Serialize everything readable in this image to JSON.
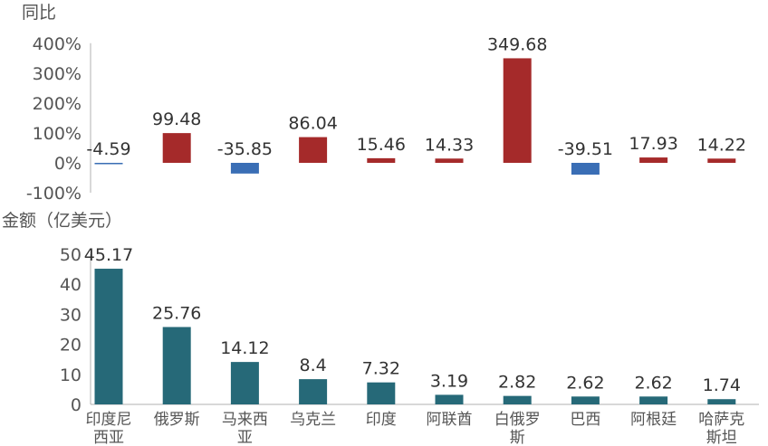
{
  "chart_data": [
    {
      "type": "bar",
      "ylabel": "同比",
      "yticks": [
        "400%",
        "300%",
        "200%",
        "100%",
        "0%",
        "-100%"
      ],
      "ytick_values": [
        400,
        300,
        200,
        100,
        0,
        -100
      ],
      "ylim": [
        -100,
        400
      ],
      "grid": false,
      "categories": [
        "印度尼西亚",
        "俄罗斯",
        "马来西亚",
        "乌克兰",
        "印度",
        "阿联酋",
        "白俄罗斯",
        "巴西",
        "阿根廷",
        "哈萨克斯坦"
      ],
      "values": [
        -4.59,
        99.48,
        -35.85,
        86.04,
        15.46,
        14.33,
        349.68,
        -39.51,
        17.93,
        14.22
      ],
      "value_labels": [
        "-4.59",
        "99.48",
        "-35.85",
        "86.04",
        "15.46",
        "14.33",
        "349.68",
        "-39.51",
        "17.93",
        "14.22"
      ],
      "colors": {
        "positive": "#a52a2a",
        "negative": "#3a6eb5"
      }
    },
    {
      "type": "bar",
      "ylabel": "金额（亿美元）",
      "yticks": [
        "50",
        "40",
        "30",
        "20",
        "10",
        "0"
      ],
      "ytick_values": [
        50,
        40,
        30,
        20,
        10,
        0
      ],
      "ylim": [
        0,
        50
      ],
      "grid": false,
      "categories": [
        "印度尼西亚",
        "俄罗斯",
        "马来西亚",
        "乌克兰",
        "印度",
        "阿联酋",
        "白俄罗斯",
        "巴西",
        "阿根廷",
        "哈萨克斯坦"
      ],
      "category_lines": [
        [
          "印度尼",
          "西亚"
        ],
        [
          "俄罗斯"
        ],
        [
          "马来西",
          "亚"
        ],
        [
          "乌克兰"
        ],
        [
          "印度"
        ],
        [
          "阿联酋"
        ],
        [
          "白俄罗",
          "斯"
        ],
        [
          "巴西"
        ],
        [
          "阿根廷"
        ],
        [
          "哈萨克",
          "斯坦"
        ]
      ],
      "values": [
        45.17,
        25.76,
        14.12,
        8.4,
        7.32,
        3.19,
        2.82,
        2.62,
        2.62,
        1.74
      ],
      "value_labels": [
        "45.17",
        "25.76",
        "14.12",
        "8.4",
        "7.32",
        "3.19",
        "2.82",
        "2.62",
        "2.62",
        "1.74"
      ],
      "colors": {
        "bar": "#266978"
      }
    }
  ]
}
